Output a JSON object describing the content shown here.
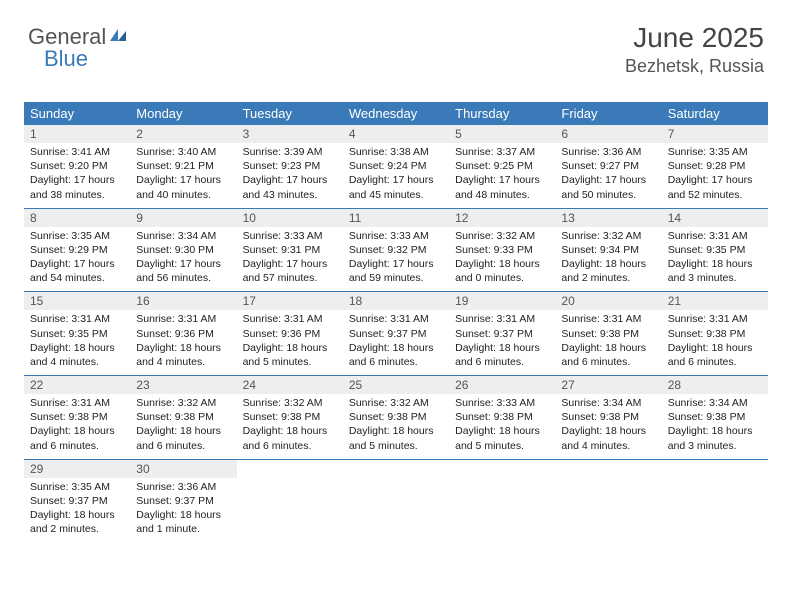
{
  "logo": {
    "text1": "General",
    "text2": "Blue"
  },
  "header": {
    "title": "June 2025",
    "location": "Bezhetsk, Russia"
  },
  "colors": {
    "header_bg": "#3a7ab8",
    "daynum_bg": "#eceeef",
    "rule": "#3a7ab8"
  },
  "weekdays": [
    "Sunday",
    "Monday",
    "Tuesday",
    "Wednesday",
    "Thursday",
    "Friday",
    "Saturday"
  ],
  "weeks": [
    {
      "nums": [
        "1",
        "2",
        "3",
        "4",
        "5",
        "6",
        "7"
      ],
      "cells": [
        {
          "sunrise": "3:41 AM",
          "sunset": "9:20 PM",
          "day_h": "17",
          "day_m": "38"
        },
        {
          "sunrise": "3:40 AM",
          "sunset": "9:21 PM",
          "day_h": "17",
          "day_m": "40"
        },
        {
          "sunrise": "3:39 AM",
          "sunset": "9:23 PM",
          "day_h": "17",
          "day_m": "43"
        },
        {
          "sunrise": "3:38 AM",
          "sunset": "9:24 PM",
          "day_h": "17",
          "day_m": "45"
        },
        {
          "sunrise": "3:37 AM",
          "sunset": "9:25 PM",
          "day_h": "17",
          "day_m": "48"
        },
        {
          "sunrise": "3:36 AM",
          "sunset": "9:27 PM",
          "day_h": "17",
          "day_m": "50"
        },
        {
          "sunrise": "3:35 AM",
          "sunset": "9:28 PM",
          "day_h": "17",
          "day_m": "52"
        }
      ]
    },
    {
      "nums": [
        "8",
        "9",
        "10",
        "11",
        "12",
        "13",
        "14"
      ],
      "cells": [
        {
          "sunrise": "3:35 AM",
          "sunset": "9:29 PM",
          "day_h": "17",
          "day_m": "54"
        },
        {
          "sunrise": "3:34 AM",
          "sunset": "9:30 PM",
          "day_h": "17",
          "day_m": "56"
        },
        {
          "sunrise": "3:33 AM",
          "sunset": "9:31 PM",
          "day_h": "17",
          "day_m": "57"
        },
        {
          "sunrise": "3:33 AM",
          "sunset": "9:32 PM",
          "day_h": "17",
          "day_m": "59"
        },
        {
          "sunrise": "3:32 AM",
          "sunset": "9:33 PM",
          "day_h": "18",
          "day_m": "0"
        },
        {
          "sunrise": "3:32 AM",
          "sunset": "9:34 PM",
          "day_h": "18",
          "day_m": "2"
        },
        {
          "sunrise": "3:31 AM",
          "sunset": "9:35 PM",
          "day_h": "18",
          "day_m": "3"
        }
      ]
    },
    {
      "nums": [
        "15",
        "16",
        "17",
        "18",
        "19",
        "20",
        "21"
      ],
      "cells": [
        {
          "sunrise": "3:31 AM",
          "sunset": "9:35 PM",
          "day_h": "18",
          "day_m": "4"
        },
        {
          "sunrise": "3:31 AM",
          "sunset": "9:36 PM",
          "day_h": "18",
          "day_m": "4"
        },
        {
          "sunrise": "3:31 AM",
          "sunset": "9:36 PM",
          "day_h": "18",
          "day_m": "5"
        },
        {
          "sunrise": "3:31 AM",
          "sunset": "9:37 PM",
          "day_h": "18",
          "day_m": "6"
        },
        {
          "sunrise": "3:31 AM",
          "sunset": "9:37 PM",
          "day_h": "18",
          "day_m": "6"
        },
        {
          "sunrise": "3:31 AM",
          "sunset": "9:38 PM",
          "day_h": "18",
          "day_m": "6"
        },
        {
          "sunrise": "3:31 AM",
          "sunset": "9:38 PM",
          "day_h": "18",
          "day_m": "6"
        }
      ]
    },
    {
      "nums": [
        "22",
        "23",
        "24",
        "25",
        "26",
        "27",
        "28"
      ],
      "cells": [
        {
          "sunrise": "3:31 AM",
          "sunset": "9:38 PM",
          "day_h": "18",
          "day_m": "6"
        },
        {
          "sunrise": "3:32 AM",
          "sunset": "9:38 PM",
          "day_h": "18",
          "day_m": "6"
        },
        {
          "sunrise": "3:32 AM",
          "sunset": "9:38 PM",
          "day_h": "18",
          "day_m": "6"
        },
        {
          "sunrise": "3:32 AM",
          "sunset": "9:38 PM",
          "day_h": "18",
          "day_m": "5"
        },
        {
          "sunrise": "3:33 AM",
          "sunset": "9:38 PM",
          "day_h": "18",
          "day_m": "5"
        },
        {
          "sunrise": "3:34 AM",
          "sunset": "9:38 PM",
          "day_h": "18",
          "day_m": "4"
        },
        {
          "sunrise": "3:34 AM",
          "sunset": "9:38 PM",
          "day_h": "18",
          "day_m": "3"
        }
      ]
    },
    {
      "nums": [
        "29",
        "30",
        "",
        "",
        "",
        "",
        ""
      ],
      "cells": [
        {
          "sunrise": "3:35 AM",
          "sunset": "9:37 PM",
          "day_h": "18",
          "day_m": "2"
        },
        {
          "sunrise": "3:36 AM",
          "sunset": "9:37 PM",
          "day_h": "18",
          "day_m": "1",
          "singular": true
        },
        null,
        null,
        null,
        null,
        null
      ]
    }
  ],
  "labels": {
    "sunrise": "Sunrise:",
    "sunset": "Sunset:",
    "daylight": "Daylight:",
    "hours": "hours",
    "and": "and",
    "minutes": "minutes.",
    "minute": "minute."
  }
}
